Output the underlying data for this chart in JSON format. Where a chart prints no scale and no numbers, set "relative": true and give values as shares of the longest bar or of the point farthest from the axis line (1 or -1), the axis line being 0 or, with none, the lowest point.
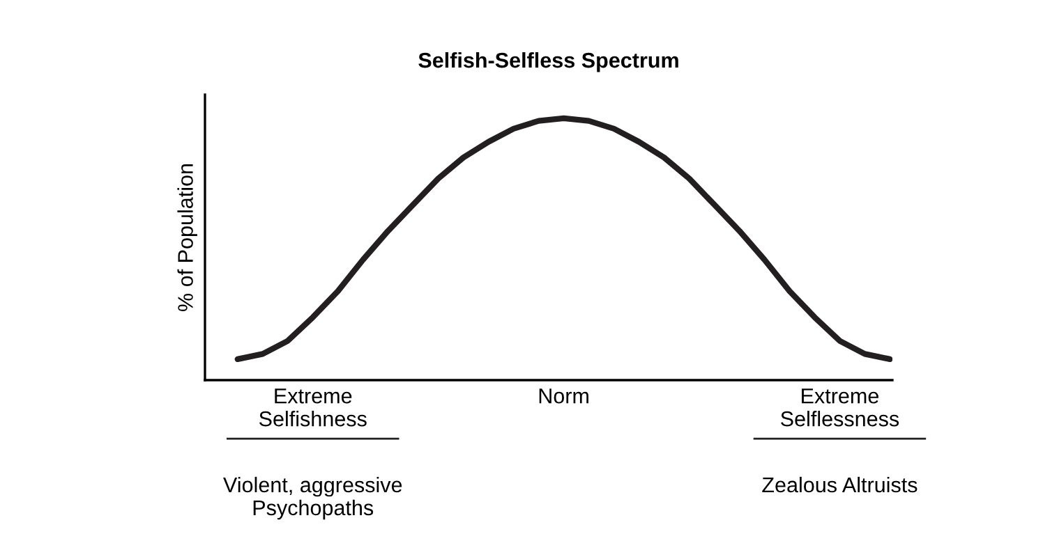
{
  "chart_data": {
    "type": "line",
    "title": "Selfish-Selfless Spectrum",
    "ylabel": "% of Population",
    "relative": true,
    "categories": [
      null,
      null,
      null,
      "Extreme\nSelfishness",
      null,
      null,
      null,
      null,
      null,
      null,
      null,
      null,
      null,
      "Norm",
      null,
      null,
      null,
      null,
      null,
      null,
      null,
      null,
      null,
      null,
      "Extreme\nSelflessness",
      null,
      null
    ],
    "series": [
      {
        "color": "#231f20",
        "values": [
          0.08,
          0.1,
          0.15,
          0.24,
          0.34,
          0.46,
          0.57,
          0.67,
          0.77,
          0.85,
          0.91,
          0.96,
          0.99,
          1.0,
          0.99,
          0.96,
          0.91,
          0.85,
          0.77,
          0.67,
          0.57,
          0.46,
          0.34,
          0.24,
          0.15,
          0.1,
          0.08
        ]
      }
    ],
    "annotations": [
      "Violent, aggressive\nPsychopaths",
      "Zealous Altruists"
    ],
    "grid": false,
    "legend": false,
    "marker": "none",
    "line_style": "solid"
  }
}
